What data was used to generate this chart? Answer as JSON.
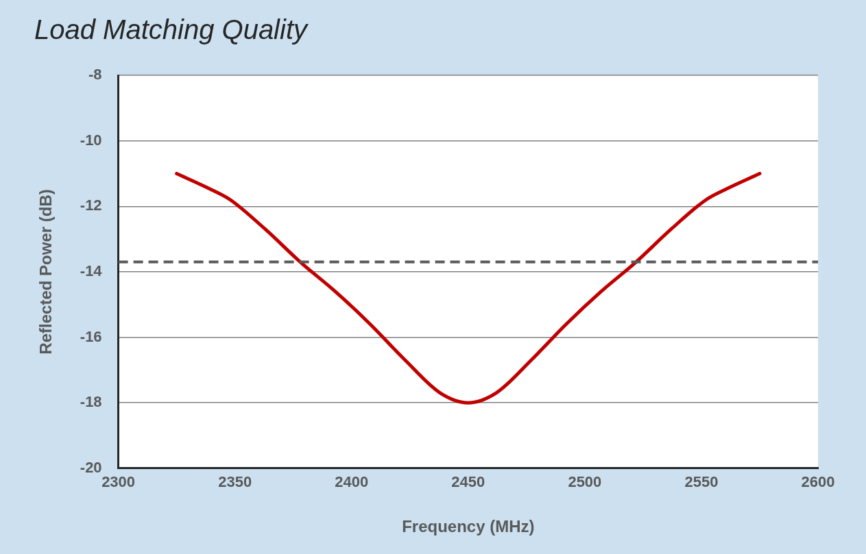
{
  "chart_data": {
    "type": "line",
    "title": "Load Matching Quality",
    "xlabel": "Frequency (MHz)",
    "ylabel": "Reflected Power (dB)",
    "x": [
      2325,
      2339,
      2348,
      2363,
      2378,
      2393,
      2408,
      2423,
      2438,
      2450,
      2462,
      2477,
      2492,
      2507,
      2522,
      2537,
      2552,
      2561,
      2575
    ],
    "series": [
      {
        "color": "#c00000",
        "values": [
          -11,
          -11.46,
          -11.8,
          -12.7,
          -13.7,
          -14.6,
          -15.6,
          -16.7,
          -17.7,
          -18,
          -17.7,
          -16.7,
          -15.6,
          -14.6,
          -13.7,
          -12.7,
          -11.8,
          -11.46,
          -11
        ]
      }
    ],
    "xlim": [
      2300,
      2600
    ],
    "xticks": [
      2300,
      2350,
      2400,
      2450,
      2500,
      2550,
      2600
    ],
    "ylim": [
      -20,
      -8
    ],
    "yticks": [
      -20,
      -18,
      -16,
      -14,
      -12,
      -10,
      -8
    ],
    "ref_lines": [
      {
        "axis": "y",
        "value": -13.7,
        "color": "#595959",
        "line_style": "dashed"
      }
    ],
    "grid": "y",
    "legend": false,
    "marker": "none",
    "line_style": "solid"
  }
}
